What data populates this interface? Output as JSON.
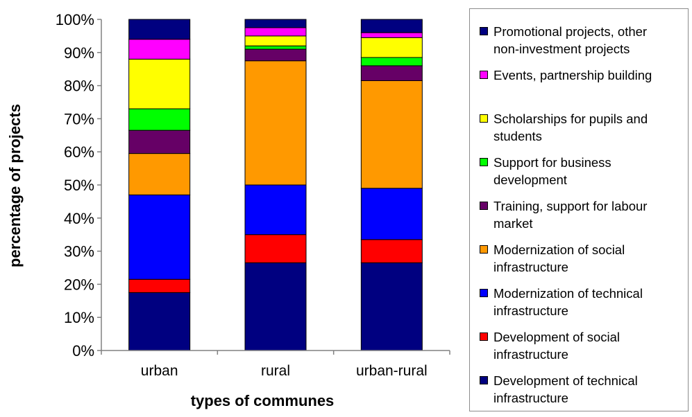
{
  "chart_data": {
    "type": "bar",
    "stacked": true,
    "categories": [
      "urban",
      "rural",
      "urban-rural"
    ],
    "xlabel": "types of communes",
    "ylabel": "percentage of projects",
    "ylim": [
      0,
      100
    ],
    "yticks": [
      "0%",
      "10%",
      "20%",
      "30%",
      "40%",
      "50%",
      "60%",
      "70%",
      "80%",
      "90%",
      "100%"
    ],
    "grid": false,
    "legend_position": "right",
    "series": [
      {
        "name": "Development of technical infrastructure",
        "color": "#000080",
        "values": [
          17.5,
          26.5,
          26.5
        ]
      },
      {
        "name": "Development of social infrastructure",
        "color": "#ff0000",
        "values": [
          4.0,
          8.5,
          7.0
        ]
      },
      {
        "name": "Modernization of technical infrastructure",
        "color": "#0000ff",
        "values": [
          25.5,
          15.0,
          15.5
        ]
      },
      {
        "name": "Modernization of social infrastructure",
        "color": "#ff9900",
        "values": [
          12.5,
          37.5,
          32.5
        ]
      },
      {
        "name": "Training, support for labour market",
        "color": "#660066",
        "values": [
          7.0,
          3.5,
          4.5
        ]
      },
      {
        "name": "Support for business development",
        "color": "#00ff00",
        "values": [
          6.5,
          1.0,
          2.5
        ]
      },
      {
        "name": "Scholarships for pupils and students",
        "color": "#ffff00",
        "values": [
          15.0,
          3.0,
          6.0
        ]
      },
      {
        "name": "Events, partnership building",
        "color": "#ff00ff",
        "values": [
          6.0,
          2.5,
          1.5
        ]
      },
      {
        "name": "Promotional projects, other non-investment projects",
        "color": "#000080",
        "values": [
          6.0,
          2.5,
          4.0
        ]
      }
    ],
    "legend_entries": [
      {
        "lines": [
          "Promotional projects, other",
          "non-investment projects"
        ],
        "color": "#000080"
      },
      {
        "lines": [
          "Events, partnership building"
        ],
        "color": "#ff00ff"
      },
      {
        "lines": [
          "Scholarships for pupils and",
          "students"
        ],
        "color": "#ffff00"
      },
      {
        "lines": [
          "Support for business",
          "development"
        ],
        "color": "#00ff00"
      },
      {
        "lines": [
          "Training, support for labour",
          "market"
        ],
        "color": "#660066"
      },
      {
        "lines": [
          "Modernization of social",
          "infrastructure"
        ],
        "color": "#ff9900"
      },
      {
        "lines": [
          "Modernization of technical",
          "infrastructure"
        ],
        "color": "#0000ff"
      },
      {
        "lines": [
          "Development of social",
          "infrastructure"
        ],
        "color": "#ff0000"
      },
      {
        "lines": [
          "Development of technical",
          "infrastructure"
        ],
        "color": "#000080"
      }
    ]
  }
}
